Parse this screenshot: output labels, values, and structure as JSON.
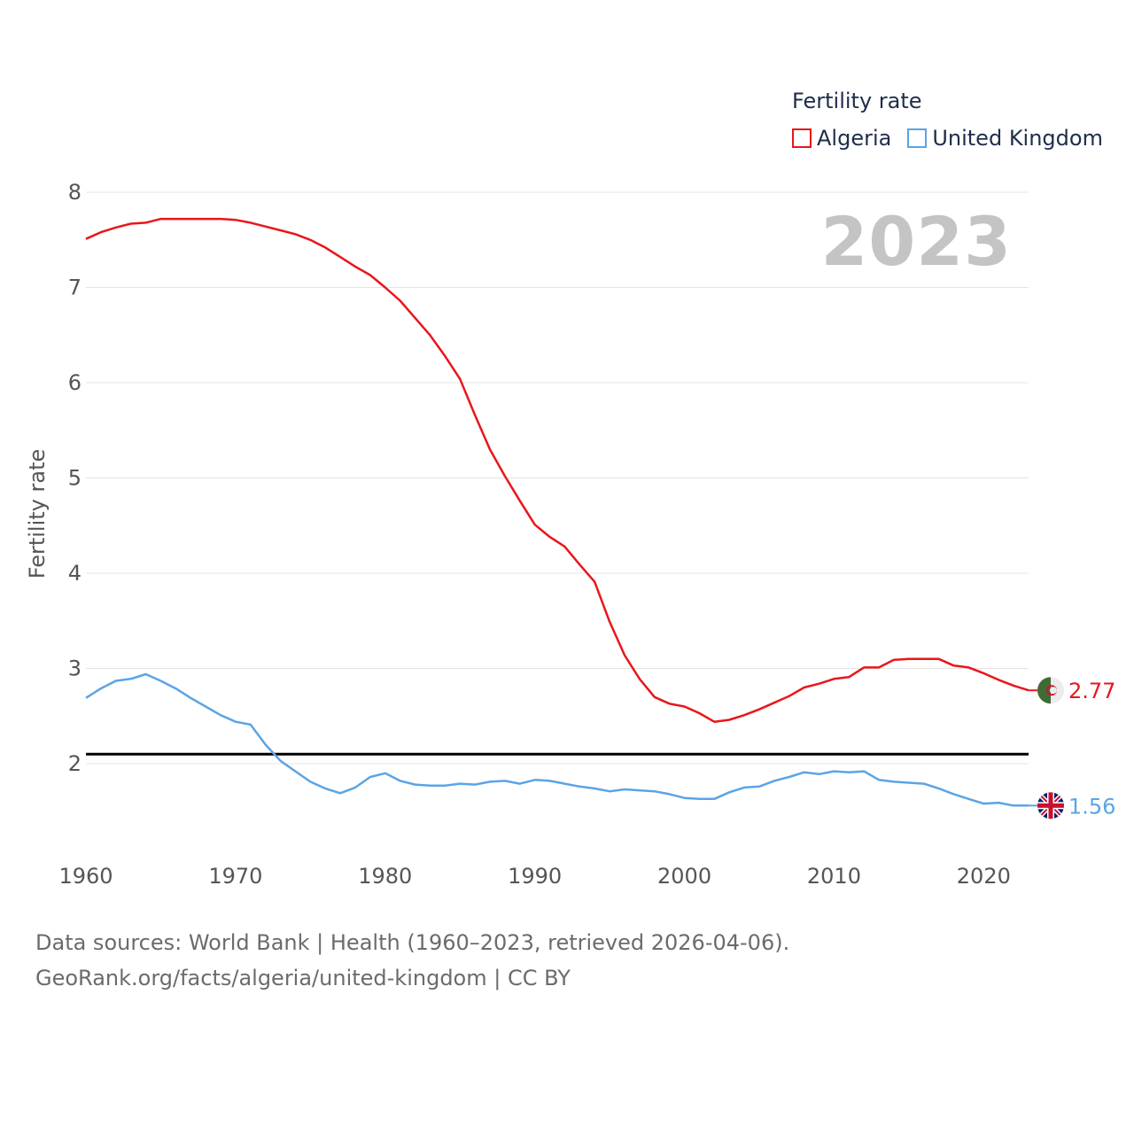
{
  "legend": {
    "title": "Fertility rate",
    "items": [
      {
        "label": "Algeria",
        "color": "#e8161b"
      },
      {
        "label": "United Kingdom",
        "color": "#5ba4e6"
      }
    ]
  },
  "year_label": "2023",
  "footer": {
    "line1": "Data sources: World Bank | Health (1960–2023, retrieved 2026-04-06).",
    "line2": "GeoRank.org/facts/algeria/united-kingdom | CC BY"
  },
  "chart_data": {
    "type": "line",
    "title": "Fertility rate",
    "xlabel": "",
    "ylabel": "Fertility rate",
    "xlim": [
      1960,
      2023
    ],
    "ylim": [
      1.5,
      8
    ],
    "xticks": [
      "1960",
      "1970",
      "1980",
      "1990",
      "2000",
      "2010",
      "2020"
    ],
    "yticks": [
      "2",
      "3",
      "4",
      "5",
      "6",
      "7",
      "8"
    ],
    "grid": true,
    "reference_line": {
      "y": 2.1,
      "color": "#000000"
    },
    "series": [
      {
        "name": "Algeria",
        "color": "#e8161b",
        "end_label": "2.77",
        "flag": "algeria-flag",
        "x": [
          1960,
          1961,
          1962,
          1963,
          1964,
          1965,
          1966,
          1967,
          1968,
          1969,
          1970,
          1971,
          1972,
          1973,
          1974,
          1975,
          1976,
          1977,
          1978,
          1979,
          1980,
          1981,
          1982,
          1983,
          1984,
          1985,
          1986,
          1987,
          1988,
          1989,
          1990,
          1991,
          1992,
          1993,
          1994,
          1995,
          1996,
          1997,
          1998,
          1999,
          2000,
          2001,
          2002,
          2003,
          2004,
          2005,
          2006,
          2007,
          2008,
          2009,
          2010,
          2011,
          2012,
          2013,
          2014,
          2015,
          2016,
          2017,
          2018,
          2019,
          2020,
          2021,
          2022,
          2023
        ],
        "values": [
          7.51,
          7.58,
          7.63,
          7.67,
          7.68,
          7.72,
          7.72,
          7.72,
          7.72,
          7.72,
          7.71,
          7.68,
          7.64,
          7.6,
          7.56,
          7.5,
          7.42,
          7.32,
          7.22,
          7.13,
          7.0,
          6.86,
          6.68,
          6.5,
          6.28,
          6.04,
          5.66,
          5.3,
          5.02,
          4.76,
          4.51,
          4.38,
          4.28,
          4.09,
          3.91,
          3.49,
          3.14,
          2.89,
          2.7,
          2.63,
          2.6,
          2.53,
          2.44,
          2.46,
          2.51,
          2.57,
          2.64,
          2.71,
          2.8,
          2.84,
          2.89,
          2.91,
          3.01,
          3.01,
          3.09,
          3.1,
          3.1,
          3.1,
          3.03,
          3.01,
          2.95,
          2.88,
          2.82,
          2.77
        ]
      },
      {
        "name": "United Kingdom",
        "color": "#5ba4e6",
        "end_label": "1.56",
        "flag": "uk-flag",
        "x": [
          1960,
          1961,
          1962,
          1963,
          1964,
          1965,
          1966,
          1967,
          1968,
          1969,
          1970,
          1971,
          1972,
          1973,
          1974,
          1975,
          1976,
          1977,
          1978,
          1979,
          1980,
          1981,
          1982,
          1983,
          1984,
          1985,
          1986,
          1987,
          1988,
          1989,
          1990,
          1991,
          1992,
          1993,
          1994,
          1995,
          1996,
          1997,
          1998,
          1999,
          2000,
          2001,
          2002,
          2003,
          2004,
          2005,
          2006,
          2007,
          2008,
          2009,
          2010,
          2011,
          2012,
          2013,
          2014,
          2015,
          2016,
          2017,
          2018,
          2019,
          2020,
          2021,
          2022,
          2023
        ],
        "values": [
          2.69,
          2.79,
          2.87,
          2.89,
          2.94,
          2.87,
          2.79,
          2.69,
          2.6,
          2.51,
          2.44,
          2.41,
          2.2,
          2.03,
          1.92,
          1.81,
          1.74,
          1.69,
          1.75,
          1.86,
          1.9,
          1.82,
          1.78,
          1.77,
          1.77,
          1.79,
          1.78,
          1.81,
          1.82,
          1.79,
          1.83,
          1.82,
          1.79,
          1.76,
          1.74,
          1.71,
          1.73,
          1.72,
          1.71,
          1.68,
          1.64,
          1.63,
          1.63,
          1.7,
          1.75,
          1.76,
          1.82,
          1.86,
          1.91,
          1.89,
          1.92,
          1.91,
          1.92,
          1.83,
          1.81,
          1.8,
          1.79,
          1.74,
          1.68,
          1.63,
          1.58,
          1.59,
          1.56,
          1.56
        ]
      }
    ]
  }
}
